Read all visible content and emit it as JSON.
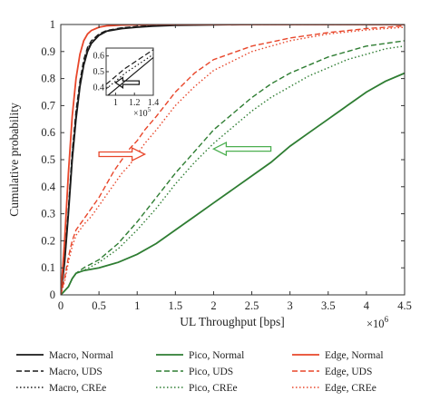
{
  "chart_data": {
    "type": "line",
    "title": "",
    "xlabel": "UL Throughput [bps]",
    "ylabel": "Cumulative probability",
    "x_multiplier_label": "×10",
    "x_multiplier_exp": "6",
    "xlim": [
      0,
      4.5
    ],
    "ylim": [
      0,
      1
    ],
    "x_ticks": [
      "0",
      "0.5",
      "1",
      "1.5",
      "2",
      "2.5",
      "3",
      "3.5",
      "4",
      "4.5"
    ],
    "y_ticks": [
      "0",
      "0.1",
      "0.2",
      "0.3",
      "0.4",
      "0.5",
      "0.6",
      "0.7",
      "0.8",
      "0.9",
      "1"
    ],
    "grid": false,
    "legend_position": "bottom",
    "colors": {
      "macro": "#1a1a1a",
      "pico": "#2e7d32",
      "edge": "#e8462a",
      "pico_arrow": "#4caf50",
      "edge_arrow": "#e8462a"
    },
    "series": [
      {
        "name": "Macro, Normal",
        "group": "macro",
        "style": "solid",
        "x": [
          0,
          0.05,
          0.1,
          0.15,
          0.2,
          0.25,
          0.3,
          0.35,
          0.4,
          0.5,
          0.6,
          0.8,
          1.0,
          1.2,
          1.5,
          2.0,
          2.5,
          3.0,
          4.5
        ],
        "y": [
          0,
          0.12,
          0.3,
          0.5,
          0.65,
          0.77,
          0.85,
          0.9,
          0.93,
          0.96,
          0.975,
          0.985,
          0.99,
          0.994,
          0.997,
          0.999,
          1,
          1,
          1
        ]
      },
      {
        "name": "Macro, UDS",
        "group": "macro",
        "style": "dashed",
        "x": [
          0,
          0.05,
          0.1,
          0.15,
          0.2,
          0.25,
          0.3,
          0.35,
          0.4,
          0.5,
          0.6,
          0.8,
          1.0,
          1.2,
          1.5,
          2.0,
          2.5,
          4.5
        ],
        "y": [
          0,
          0.13,
          0.32,
          0.53,
          0.68,
          0.79,
          0.87,
          0.915,
          0.94,
          0.965,
          0.978,
          0.988,
          0.993,
          0.996,
          0.998,
          1,
          1,
          1
        ]
      },
      {
        "name": "Macro, CREe",
        "group": "macro",
        "style": "dotted",
        "x": [
          0,
          0.05,
          0.1,
          0.15,
          0.2,
          0.25,
          0.3,
          0.35,
          0.4,
          0.5,
          0.6,
          0.8,
          1.0,
          1.2,
          1.5,
          2.0,
          2.5,
          4.5
        ],
        "y": [
          0,
          0.12,
          0.31,
          0.52,
          0.67,
          0.78,
          0.86,
          0.91,
          0.935,
          0.962,
          0.976,
          0.987,
          0.992,
          0.995,
          0.998,
          1,
          1,
          1
        ]
      },
      {
        "name": "Pico, Normal",
        "group": "pico",
        "style": "solid",
        "x": [
          0,
          0.1,
          0.15,
          0.2,
          0.3,
          0.5,
          0.75,
          1.0,
          1.25,
          1.5,
          1.75,
          2.0,
          2.25,
          2.5,
          2.75,
          3.0,
          3.25,
          3.5,
          3.75,
          4.0,
          4.25,
          4.5
        ],
        "y": [
          0,
          0.03,
          0.06,
          0.08,
          0.09,
          0.1,
          0.12,
          0.15,
          0.19,
          0.24,
          0.29,
          0.34,
          0.39,
          0.44,
          0.49,
          0.55,
          0.6,
          0.65,
          0.7,
          0.75,
          0.79,
          0.82
        ]
      },
      {
        "name": "Pico, UDS",
        "group": "pico",
        "style": "dashed",
        "x": [
          0,
          0.1,
          0.15,
          0.2,
          0.3,
          0.5,
          0.75,
          1.0,
          1.25,
          1.5,
          1.75,
          2.0,
          2.25,
          2.5,
          2.75,
          3.0,
          3.25,
          3.5,
          3.75,
          4.0,
          4.25,
          4.5
        ],
        "y": [
          0,
          0.03,
          0.06,
          0.08,
          0.1,
          0.13,
          0.19,
          0.27,
          0.36,
          0.45,
          0.53,
          0.61,
          0.67,
          0.73,
          0.78,
          0.82,
          0.85,
          0.88,
          0.9,
          0.92,
          0.93,
          0.94
        ]
      },
      {
        "name": "Pico, CREe",
        "group": "pico",
        "style": "dotted",
        "x": [
          0,
          0.1,
          0.15,
          0.2,
          0.3,
          0.5,
          0.75,
          1.0,
          1.25,
          1.5,
          1.75,
          2.0,
          2.25,
          2.5,
          2.75,
          3.0,
          3.25,
          3.5,
          3.75,
          4.0,
          4.25,
          4.5
        ],
        "y": [
          0,
          0.03,
          0.06,
          0.08,
          0.09,
          0.12,
          0.17,
          0.24,
          0.32,
          0.41,
          0.49,
          0.56,
          0.62,
          0.68,
          0.73,
          0.77,
          0.81,
          0.84,
          0.87,
          0.89,
          0.91,
          0.92
        ]
      },
      {
        "name": "Edge, Normal",
        "group": "edge",
        "style": "solid",
        "x": [
          0,
          0.05,
          0.1,
          0.15,
          0.2,
          0.25,
          0.3,
          0.35,
          0.4,
          0.5,
          0.6,
          0.8,
          1.0,
          1.2,
          1.5,
          2.0,
          4.5
        ],
        "y": [
          0,
          0.2,
          0.45,
          0.66,
          0.8,
          0.89,
          0.94,
          0.965,
          0.978,
          0.99,
          0.995,
          0.998,
          0.999,
          1,
          1,
          1,
          1
        ]
      },
      {
        "name": "Edge, UDS",
        "group": "edge",
        "style": "dashed",
        "x": [
          0,
          0.05,
          0.1,
          0.15,
          0.2,
          0.3,
          0.4,
          0.5,
          0.6,
          0.7,
          0.8,
          0.9,
          1.0,
          1.1,
          1.25,
          1.5,
          1.75,
          2.0,
          2.5,
          3.0,
          3.5,
          4.0,
          4.5
        ],
        "y": [
          0,
          0.06,
          0.14,
          0.2,
          0.24,
          0.28,
          0.32,
          0.36,
          0.41,
          0.46,
          0.5,
          0.54,
          0.57,
          0.61,
          0.66,
          0.75,
          0.82,
          0.87,
          0.92,
          0.95,
          0.97,
          0.985,
          0.995
        ]
      },
      {
        "name": "Edge, CREe",
        "group": "edge",
        "style": "dotted",
        "x": [
          0,
          0.05,
          0.1,
          0.15,
          0.2,
          0.3,
          0.4,
          0.5,
          0.6,
          0.7,
          0.8,
          0.9,
          1.0,
          1.1,
          1.25,
          1.5,
          1.75,
          2.0,
          2.5,
          3.0,
          3.5,
          4.0,
          4.5
        ],
        "y": [
          0,
          0.05,
          0.12,
          0.18,
          0.22,
          0.26,
          0.29,
          0.33,
          0.37,
          0.41,
          0.45,
          0.48,
          0.52,
          0.56,
          0.61,
          0.7,
          0.77,
          0.83,
          0.9,
          0.94,
          0.965,
          0.98,
          0.99
        ]
      }
    ],
    "inset": {
      "xlim": [
        0.9,
        1.4
      ],
      "ylim": [
        0.35,
        0.65
      ],
      "x_ticks": [
        "1",
        "1.2",
        "1.4"
      ],
      "y_ticks": [
        "0.4",
        "0.5",
        "0.6"
      ],
      "x_multiplier_label": "×10",
      "x_multiplier_exp": "5",
      "series": [
        {
          "name": "Macro, Normal",
          "style": "solid",
          "x": [
            0.9,
            1.0,
            1.1,
            1.2,
            1.3,
            1.4
          ],
          "y": [
            0.34,
            0.39,
            0.44,
            0.49,
            0.54,
            0.59
          ]
        },
        {
          "name": "Macro, UDS",
          "style": "dashed",
          "x": [
            0.9,
            1.0,
            1.1,
            1.2,
            1.3,
            1.4
          ],
          "y": [
            0.42,
            0.47,
            0.52,
            0.56,
            0.6,
            0.64
          ]
        },
        {
          "name": "Macro, CREe",
          "style": "dotted",
          "x": [
            0.9,
            1.0,
            1.1,
            1.2,
            1.3,
            1.4
          ],
          "y": [
            0.39,
            0.44,
            0.49,
            0.53,
            0.57,
            0.61
          ]
        }
      ]
    },
    "annotations": [
      {
        "type": "arrow",
        "direction": "right",
        "group": "edge",
        "x_from": 0.5,
        "x_to": 1.1,
        "y": 0.52
      },
      {
        "type": "arrow",
        "direction": "left",
        "group": "pico",
        "x_from": 2.75,
        "x_to": 2.0,
        "y": 0.54
      },
      {
        "type": "arrow",
        "direction": "left",
        "group": "macro",
        "inset": true,
        "x_from": 1.25,
        "x_to": 1.0,
        "y": 0.43
      }
    ]
  }
}
